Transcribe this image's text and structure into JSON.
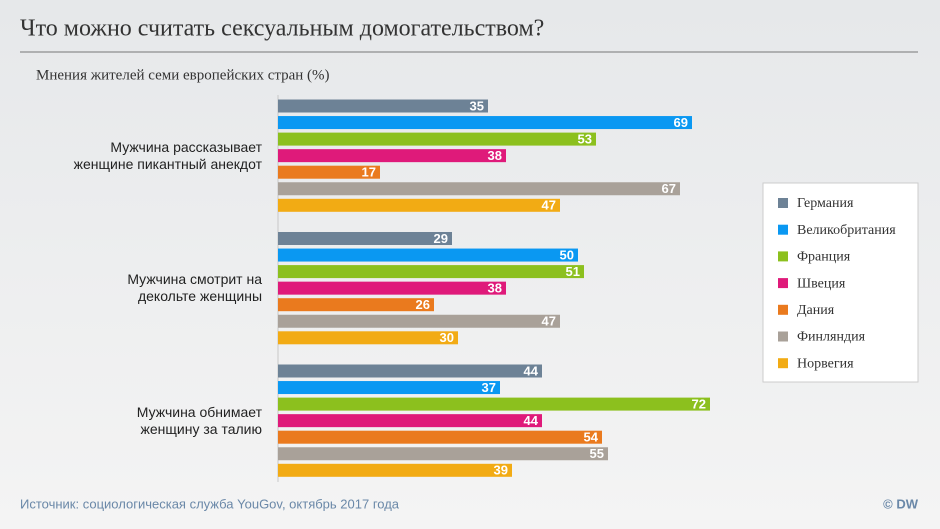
{
  "chart_data": {
    "type": "hbar",
    "title": "Что можно считать сексуальным домогательством?",
    "subtitle": "Мнения жителей семи европейских стран (%)",
    "categories": [
      "Мужчина рассказывает\nженщине пикантный анекдот",
      "Мужчина смотрит на\nдекольте женщины",
      "Мужчина обнимает\nженщину за талию"
    ],
    "series": [
      {
        "name": "Германия",
        "color": "#6d8296",
        "values": [
          35,
          29,
          44
        ]
      },
      {
        "name": "Великобритания",
        "color": "#0a98f2",
        "values": [
          69,
          50,
          37
        ]
      },
      {
        "name": "Франция",
        "color": "#8cc01e",
        "values": [
          53,
          51,
          72
        ]
      },
      {
        "name": "Швеция",
        "color": "#df1a7a",
        "values": [
          38,
          38,
          44
        ]
      },
      {
        "name": "Дания",
        "color": "#ea7a1e",
        "values": [
          17,
          26,
          54
        ]
      },
      {
        "name": "Финляндия",
        "color": "#a9a199",
        "values": [
          67,
          47,
          55
        ]
      },
      {
        "name": "Норвегия",
        "color": "#f2ab14",
        "values": [
          47,
          30,
          39
        ]
      }
    ],
    "source": "Источник: социологическая служба YouGov, октябрь 2017 года",
    "credit": "© DW"
  }
}
